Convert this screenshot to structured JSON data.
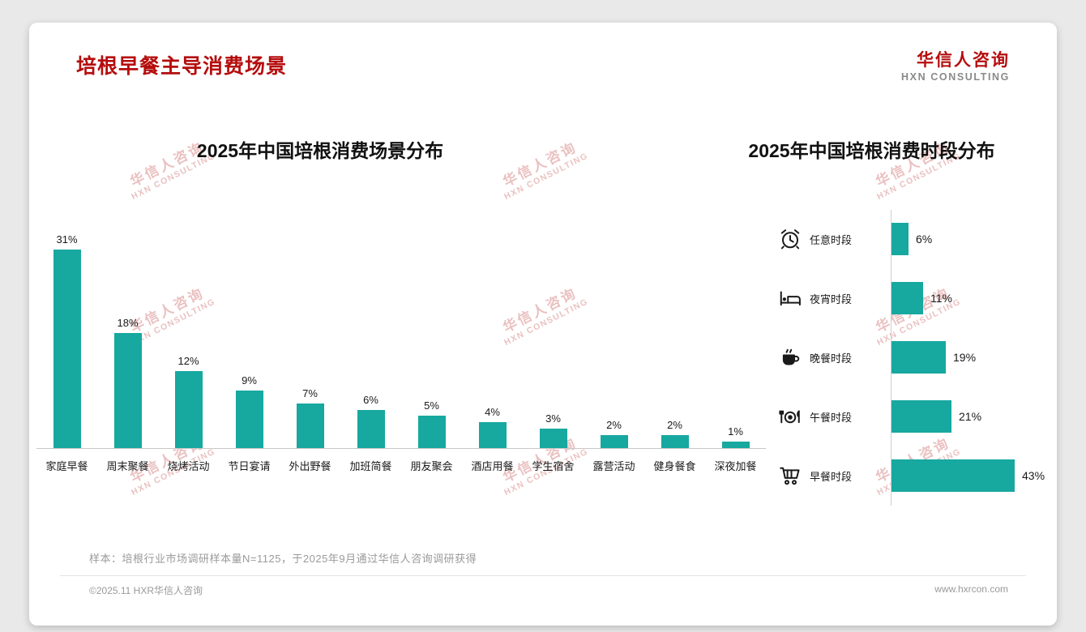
{
  "header": {
    "title": "培根早餐主导消费场景",
    "logo_cn": "华信人咨询",
    "logo_en": "HXN CONSULTING"
  },
  "watermark": {
    "line1": "华信人咨询",
    "line2": "HXN CONSULTING"
  },
  "colors": {
    "accent_red": "#b50d0d",
    "bar_teal": "#17a8a0",
    "watermark_pink": "rgba(200,90,90,0.38)"
  },
  "chart_data": [
    {
      "type": "bar",
      "orientation": "vertical",
      "title": "2025年中国培根消费场景分布",
      "unit": "%",
      "categories": [
        "家庭早餐",
        "周末聚餐",
        "烧烤活动",
        "节日宴请",
        "外出野餐",
        "加班简餐",
        "朋友聚会",
        "酒店用餐",
        "学生宿舍",
        "露营活动",
        "健身餐食",
        "深夜加餐"
      ],
      "values": [
        31,
        18,
        12,
        9,
        7,
        6,
        5,
        4,
        3,
        2,
        2,
        1
      ],
      "ylim": [
        0,
        31
      ],
      "grid": false,
      "legend": "none"
    },
    {
      "type": "bar",
      "orientation": "horizontal",
      "title": "2025年中国培根消费时段分布",
      "unit": "%",
      "categories": [
        "任意时段",
        "夜宵时段",
        "晚餐时段",
        "午餐时段",
        "早餐时段"
      ],
      "values": [
        6,
        11,
        19,
        21,
        43
      ],
      "icons": [
        "alarm-clock-icon",
        "bed-icon",
        "hot-drink-icon",
        "restaurant-icon",
        "shopping-cart-icon"
      ],
      "xlim": [
        0,
        43
      ],
      "grid": false,
      "legend": "none"
    }
  ],
  "footer": {
    "note": "样本：培根行业市场调研样本量N=1125，于2025年9月通过华信人咨询调研获得",
    "copyright": "©2025.11 HXR华信人咨询",
    "website": "www.hxrcon.com"
  }
}
